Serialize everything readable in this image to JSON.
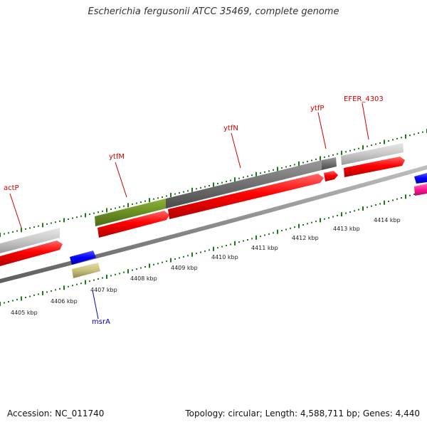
{
  "title": "Escherichia fergusonii ATCC 35469, complete genome",
  "footer": {
    "accession": "Accession: NC_011740",
    "summary": "Topology: circular; Length: 4,588,711 bp; Genes: 4,440"
  },
  "scale_labels": [
    "4405 kbp",
    "4406 kbp",
    "4407 kbp",
    "4408 kbp",
    "4409 kbp",
    "4410 kbp",
    "4411 kbp",
    "4412 kbp",
    "4413 kbp",
    "4414 kbp"
  ],
  "gene_labels": [
    {
      "name": "actP",
      "color": "#cc0000"
    },
    {
      "name": "ytfM",
      "color": "#cc0000"
    },
    {
      "name": "ytfN",
      "color": "#cc0000"
    },
    {
      "name": "ytfP",
      "color": "#cc0000"
    },
    {
      "name": "EFER_4303",
      "color": "#cc0000"
    },
    {
      "name": "msrA",
      "color": "#0000cc"
    }
  ],
  "colors": {
    "cds": "#ff0000",
    "gene_grey": "#c8c8c8",
    "gene_dark": "#707070",
    "gene_olive": "#6b8e23",
    "reverse_blue": "#0000ff",
    "reverse_khaki": "#c8c07a",
    "pink": "#ff1493",
    "tick": "#1a7a1a",
    "backbone": "#8c8c8c"
  }
}
